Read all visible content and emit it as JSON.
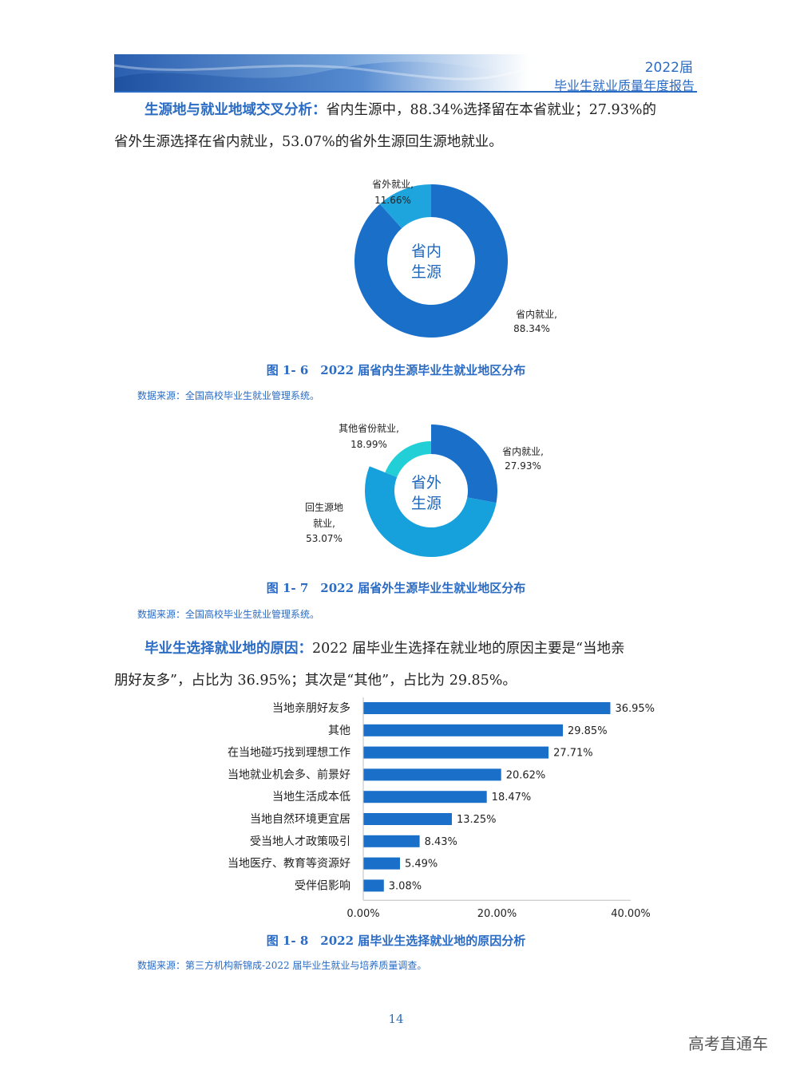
{
  "header": {
    "line1": "2022届",
    "line2": "毕业生就业质量年度报告"
  },
  "para1": {
    "lead": "生源地与就业地域交叉分析：",
    "text1": "省内生源中，88.34%选择留在本省就业；27.93%的",
    "text2": "省外生源选择在省内就业，53.07%的省外生源回生源地就业。"
  },
  "para2": {
    "lead": "毕业生选择就业地的原因：",
    "text1": "2022 届毕业生选择在就业地的原因主要是“当地亲",
    "text2": "朋好友多”，占比为 36.95%；其次是“其他”，占比为 29.85%。"
  },
  "figures": [
    {
      "caption": "图 1- 6　2022 届省内生源毕业生就业地区分布",
      "source": "数据来源：全国高校毕业生就业管理系统。"
    },
    {
      "caption": "图 1- 7　2022 届省外生源毕业生就业地区分布",
      "source": "数据来源：全国高校毕业生就业管理系统。"
    },
    {
      "caption": "图 1- 8　2022 届毕业生选择就业地的原因分析",
      "source": "数据来源：第三方机构新锦成-2022 届毕业生就业与培养质量调查。"
    }
  ],
  "chart_data": [
    {
      "type": "pie",
      "variant": "donut",
      "center_label": [
        "省内",
        "生源"
      ],
      "slices": [
        {
          "label": "省内就业,",
          "value": 88.34,
          "display": "88.34%",
          "color": "#1a6fc9"
        },
        {
          "label": "省外就业,",
          "value": 11.66,
          "display": "11.66%",
          "color": "#1ea5dd"
        }
      ]
    },
    {
      "type": "pie",
      "variant": "donut",
      "center_label": [
        "省外",
        "生源"
      ],
      "slices": [
        {
          "label": "省内就业,",
          "value": 27.93,
          "display": "27.93%",
          "color": "#1a6fc9"
        },
        {
          "label": "回生源地就业,",
          "label_lines": [
            "回生源地",
            "就业,"
          ],
          "value": 53.07,
          "display": "53.07%",
          "color": "#16a0dc"
        },
        {
          "label": "其他省份就业,",
          "value": 18.99,
          "display": "18.99%",
          "color": "#22cfd6"
        }
      ]
    },
    {
      "type": "bar",
      "orientation": "horizontal",
      "categories": [
        "当地亲朋好友多",
        "其他",
        "在当地碰巧找到理想工作",
        "当地就业机会多、前景好",
        "当地生活成本低",
        "当地自然环境更宜居",
        "受当地人才政策吸引",
        "当地医疗、教育等资源好",
        "受伴侣影响"
      ],
      "values": [
        36.95,
        29.85,
        27.71,
        20.62,
        18.47,
        13.25,
        8.43,
        5.49,
        3.08
      ],
      "value_labels": [
        "36.95%",
        "29.85%",
        "27.71%",
        "20.62%",
        "18.47%",
        "13.25%",
        "8.43%",
        "5.49%",
        "3.08%"
      ],
      "xlim": [
        0,
        40
      ],
      "xticks": [
        "0.00%",
        "20.00%",
        "40.00%"
      ],
      "color": "#1a6fc9",
      "grid": false
    }
  ],
  "page_number": "14",
  "watermark": "高考直通车"
}
